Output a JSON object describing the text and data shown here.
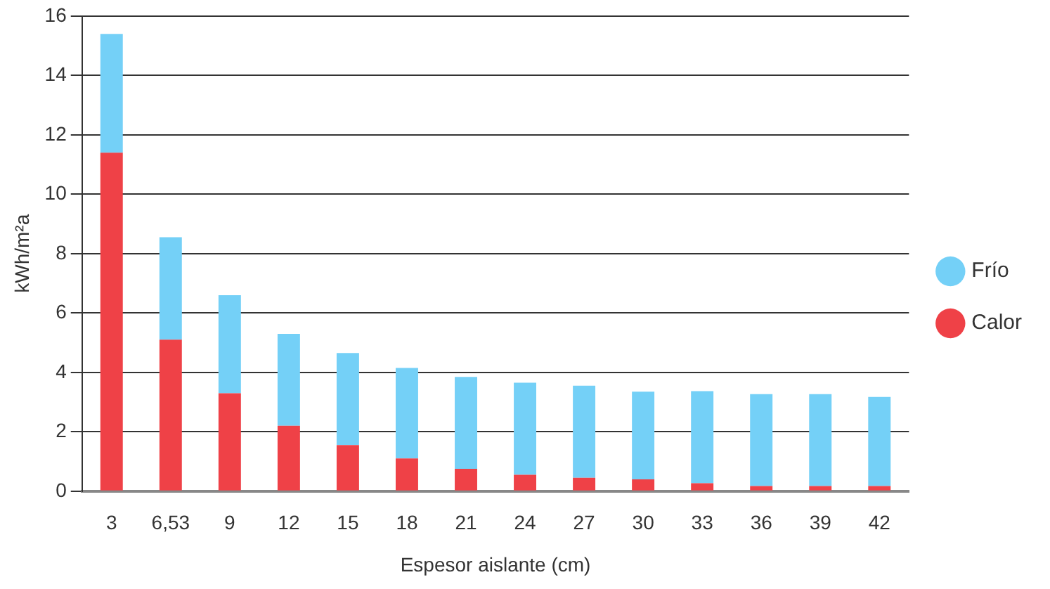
{
  "chart_data": {
    "type": "bar",
    "stacked": true,
    "xlabel": "Espesor aislante (cm)",
    "ylabel": "kWh/m²a",
    "categories": [
      "3",
      "6,53",
      "9",
      "12",
      "15",
      "18",
      "21",
      "24",
      "27",
      "30",
      "33",
      "36",
      "39",
      "42"
    ],
    "series": [
      {
        "name": "Calor",
        "color": "#ef4147",
        "values": [
          11.4,
          5.1,
          3.3,
          2.2,
          1.55,
          1.1,
          0.75,
          0.55,
          0.45,
          0.4,
          0.27,
          0.17,
          0.17,
          0.17
        ]
      },
      {
        "name": "Frío",
        "color": "#74d0f7",
        "values": [
          4.0,
          3.45,
          3.3,
          3.1,
          3.1,
          3.05,
          3.1,
          3.1,
          3.1,
          2.95,
          3.1,
          3.1,
          3.1,
          3.0
        ]
      }
    ],
    "ylim": [
      0,
      16
    ],
    "yticks": [
      0,
      2,
      4,
      6,
      8,
      10,
      12,
      14,
      16
    ],
    "grid": "y",
    "legend": "right"
  }
}
